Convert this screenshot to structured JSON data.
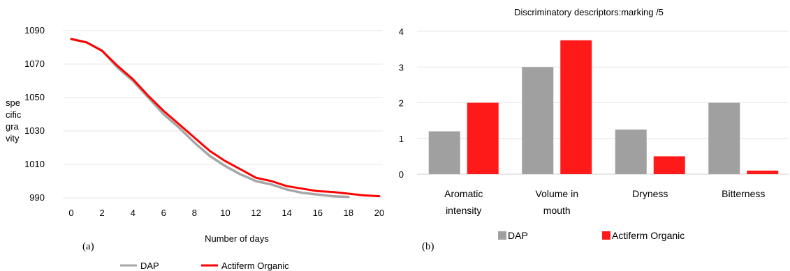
{
  "chart_data": [
    {
      "type": "line",
      "panel_label": "(a)",
      "xlabel": "Number of days",
      "ylabel_lines": [
        "spe",
        "cific",
        "gra",
        "vity"
      ],
      "xlim": [
        0,
        20
      ],
      "ylim": [
        990,
        1090
      ],
      "xticks": [
        0,
        2,
        4,
        6,
        8,
        10,
        12,
        14,
        16,
        18,
        20
      ],
      "yticks": [
        990,
        1010,
        1030,
        1050,
        1070,
        1090
      ],
      "grid": true,
      "legend_position": "bottom",
      "series": [
        {
          "name": "DAP",
          "color": "#a6a6a6",
          "x": [
            0,
            1,
            2,
            3,
            4,
            5,
            6,
            7,
            8,
            9,
            10,
            11,
            12,
            13,
            14,
            15,
            16,
            17,
            18
          ],
          "y": [
            1085,
            1083,
            1078,
            1068,
            1060,
            1050,
            1040,
            1032,
            1023,
            1015,
            1009,
            1004,
            1000,
            998,
            995,
            993,
            992,
            991,
            990.5
          ]
        },
        {
          "name": "Actiferm Organic",
          "color": "#ff0000",
          "x": [
            0,
            1,
            2,
            3,
            4,
            5,
            6,
            7,
            8,
            9,
            10,
            11,
            12,
            13,
            14,
            15,
            16,
            17,
            18,
            19,
            20
          ],
          "y": [
            1085,
            1083,
            1078,
            1069,
            1061,
            1051,
            1042,
            1034,
            1026,
            1018,
            1012,
            1007,
            1002,
            1000,
            997,
            995.5,
            994,
            993.5,
            992.5,
            991.5,
            991
          ]
        }
      ]
    },
    {
      "type": "bar",
      "panel_label": "(b)",
      "title": "Discriminatory descriptors:marking  /5",
      "categories": [
        [
          "Aromatic",
          "intensity"
        ],
        [
          "Volume in",
          "mouth"
        ],
        [
          "Dryness"
        ],
        [
          "Bitterness"
        ]
      ],
      "ylim": [
        0,
        4
      ],
      "yticks": [
        0,
        1,
        2,
        3,
        4
      ],
      "grid": true,
      "legend_position": "bottom",
      "series": [
        {
          "name": "DAP",
          "color": "#a0a0a0",
          "values": [
            1.2,
            3.0,
            1.25,
            2.0
          ]
        },
        {
          "name": "Actiferm Organic",
          "color": "#ff1a1a",
          "values": [
            2.0,
            3.75,
            0.5,
            0.1
          ]
        }
      ]
    }
  ]
}
